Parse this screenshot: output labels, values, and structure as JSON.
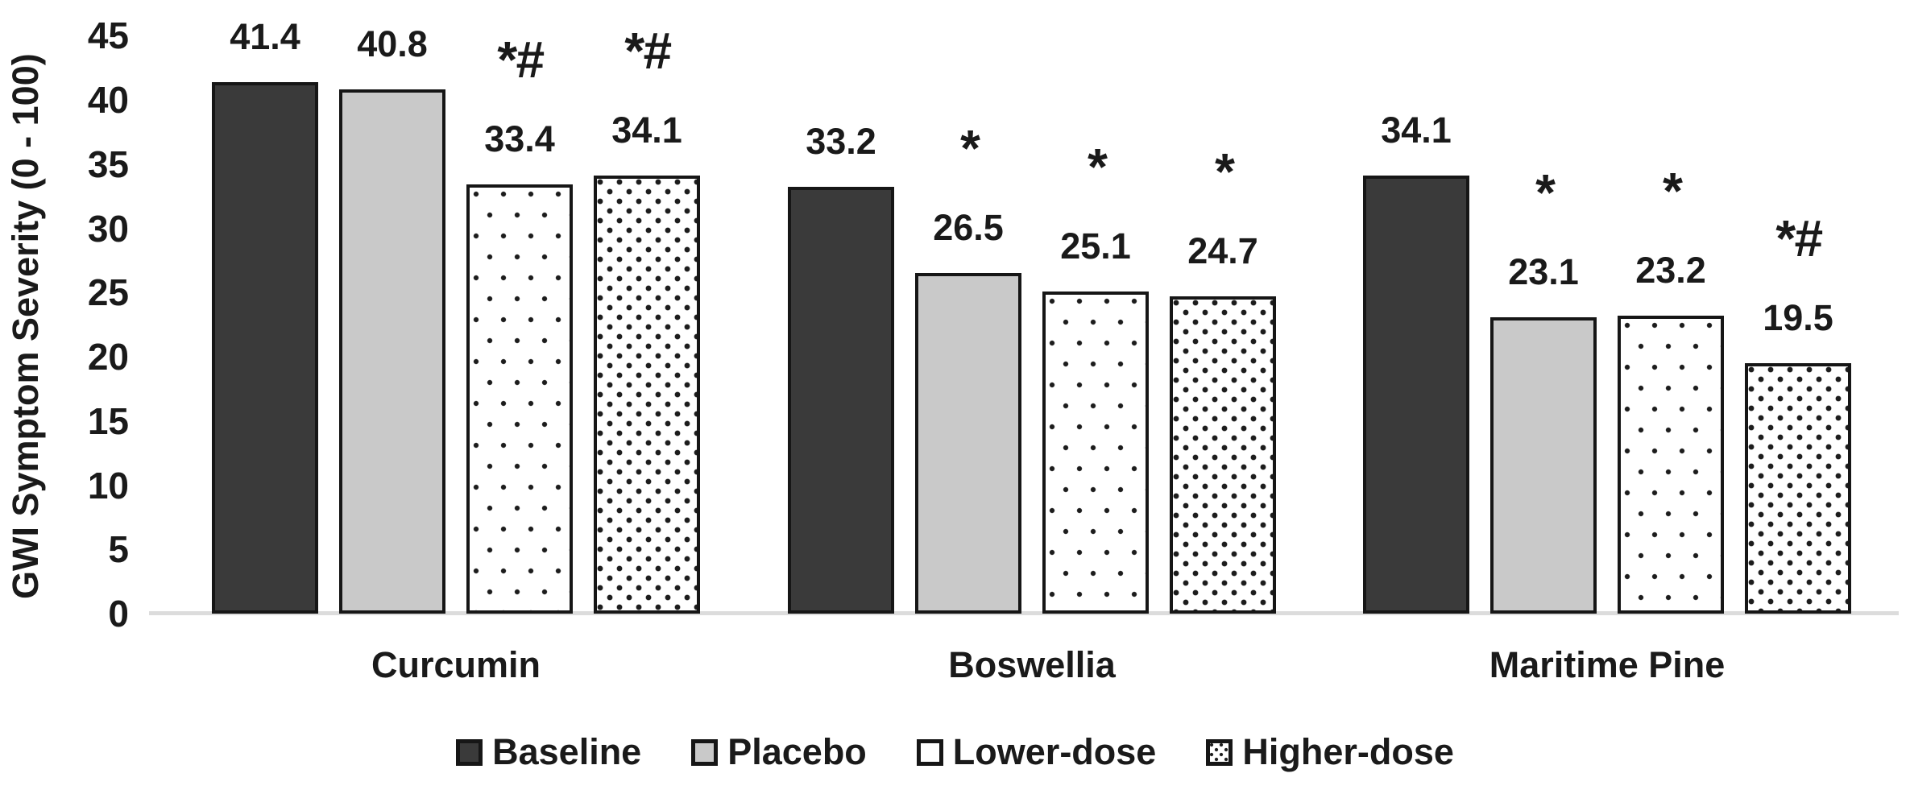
{
  "chart_data": {
    "type": "bar",
    "title": "",
    "ylabel": "GWI Symptom Severity (0 - 100)",
    "xlabel": "",
    "ylim": [
      0,
      45
    ],
    "yticks": [
      0,
      5,
      10,
      15,
      20,
      25,
      30,
      35,
      40,
      45
    ],
    "grid": false,
    "legend_position": "bottom",
    "categories": [
      "Curcumin",
      "Boswellia",
      "Maritime Pine"
    ],
    "series": [
      {
        "name": "Baseline",
        "pattern": "solid",
        "color": "#3a3a3a",
        "values": [
          41.4,
          33.2,
          34.1
        ],
        "annotations": [
          "",
          "",
          ""
        ]
      },
      {
        "name": "Placebo",
        "pattern": "solid",
        "color": "#c9c9c9",
        "values": [
          40.8,
          26.5,
          23.1
        ],
        "annotations": [
          "",
          "*",
          "*"
        ]
      },
      {
        "name": "Lower-dose",
        "pattern": "dots-sparse",
        "color": "#ffffff",
        "values": [
          33.4,
          25.1,
          23.2
        ],
        "annotations": [
          "*#",
          "*",
          "*"
        ]
      },
      {
        "name": "Higher-dose",
        "pattern": "dots-dense",
        "color": "#ffffff",
        "values": [
          34.1,
          24.7,
          19.5
        ],
        "annotations": [
          "*#",
          "*",
          "*#"
        ]
      }
    ],
    "colors": {
      "text": "#1a1a1a",
      "bar_border": "#161616",
      "axis_line": "#dcdcdc",
      "dot_pattern": "#1c1c1c",
      "background": "#ffffff"
    }
  }
}
